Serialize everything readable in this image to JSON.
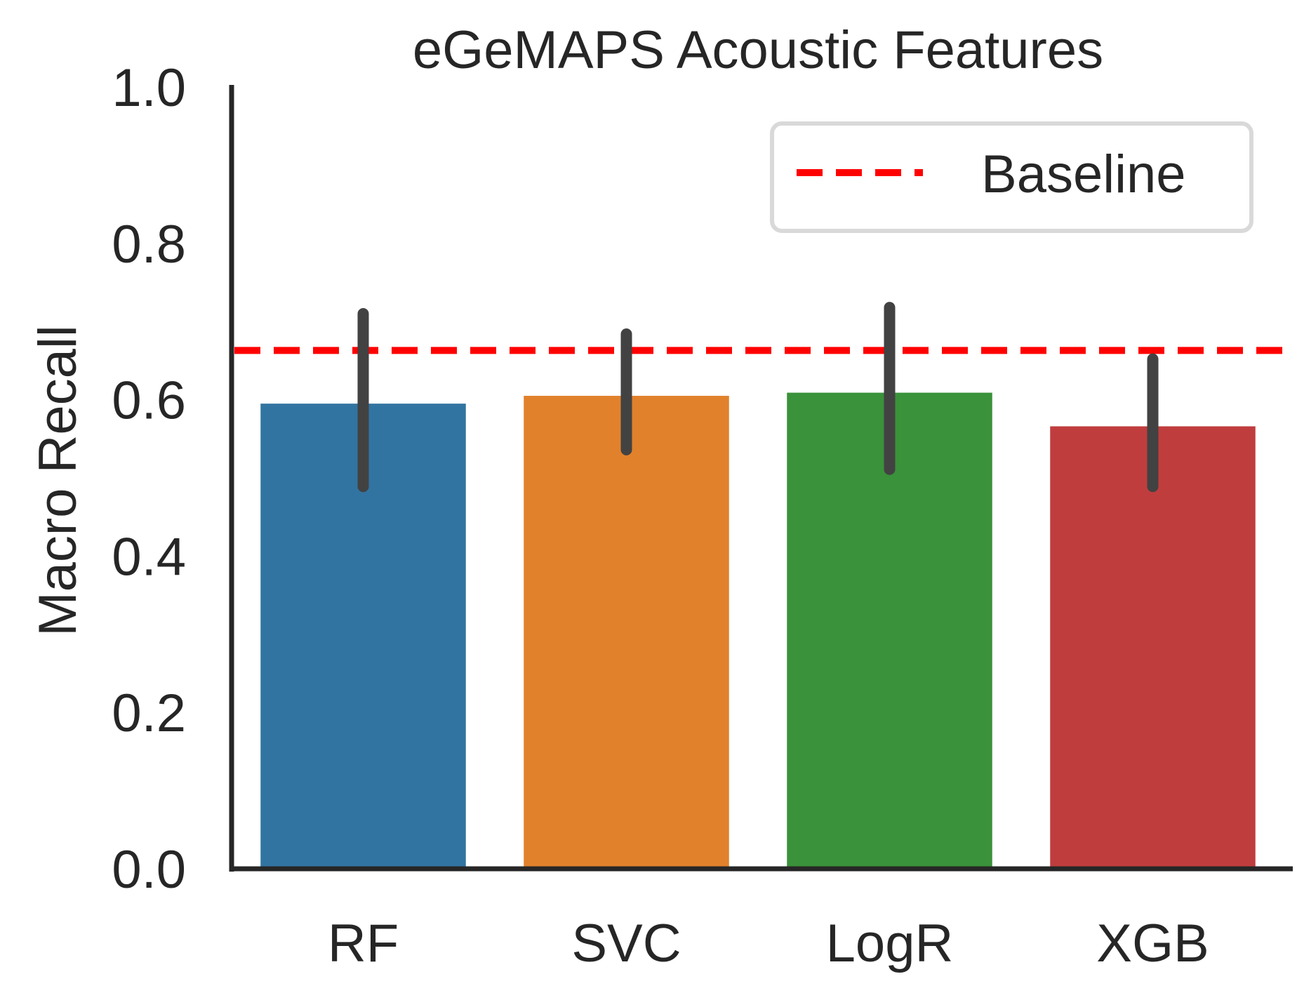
{
  "chart_data": {
    "type": "bar",
    "title": "eGeMAPS Acoustic Features",
    "xlabel": "",
    "ylabel": "Macro Recall",
    "ylim": [
      0,
      1.0
    ],
    "yticks": [
      "0.0",
      "0.2",
      "0.4",
      "0.6",
      "0.8",
      "1.0"
    ],
    "categories": [
      "RF",
      "SVC",
      "LogR",
      "XGB"
    ],
    "values": [
      0.595,
      0.605,
      0.609,
      0.566
    ],
    "error_low": [
      0.489,
      0.536,
      0.511,
      0.489
    ],
    "error_high": [
      0.71,
      0.684,
      0.718,
      0.652
    ],
    "colors": [
      "#3274a1",
      "#e1812c",
      "#3a923a",
      "#c03d3e"
    ],
    "baseline": {
      "label": "Baseline",
      "value": 0.663,
      "color": "#ff0000"
    },
    "legend": {
      "position": "top-right",
      "entries": [
        "Baseline"
      ]
    },
    "grid": false
  }
}
